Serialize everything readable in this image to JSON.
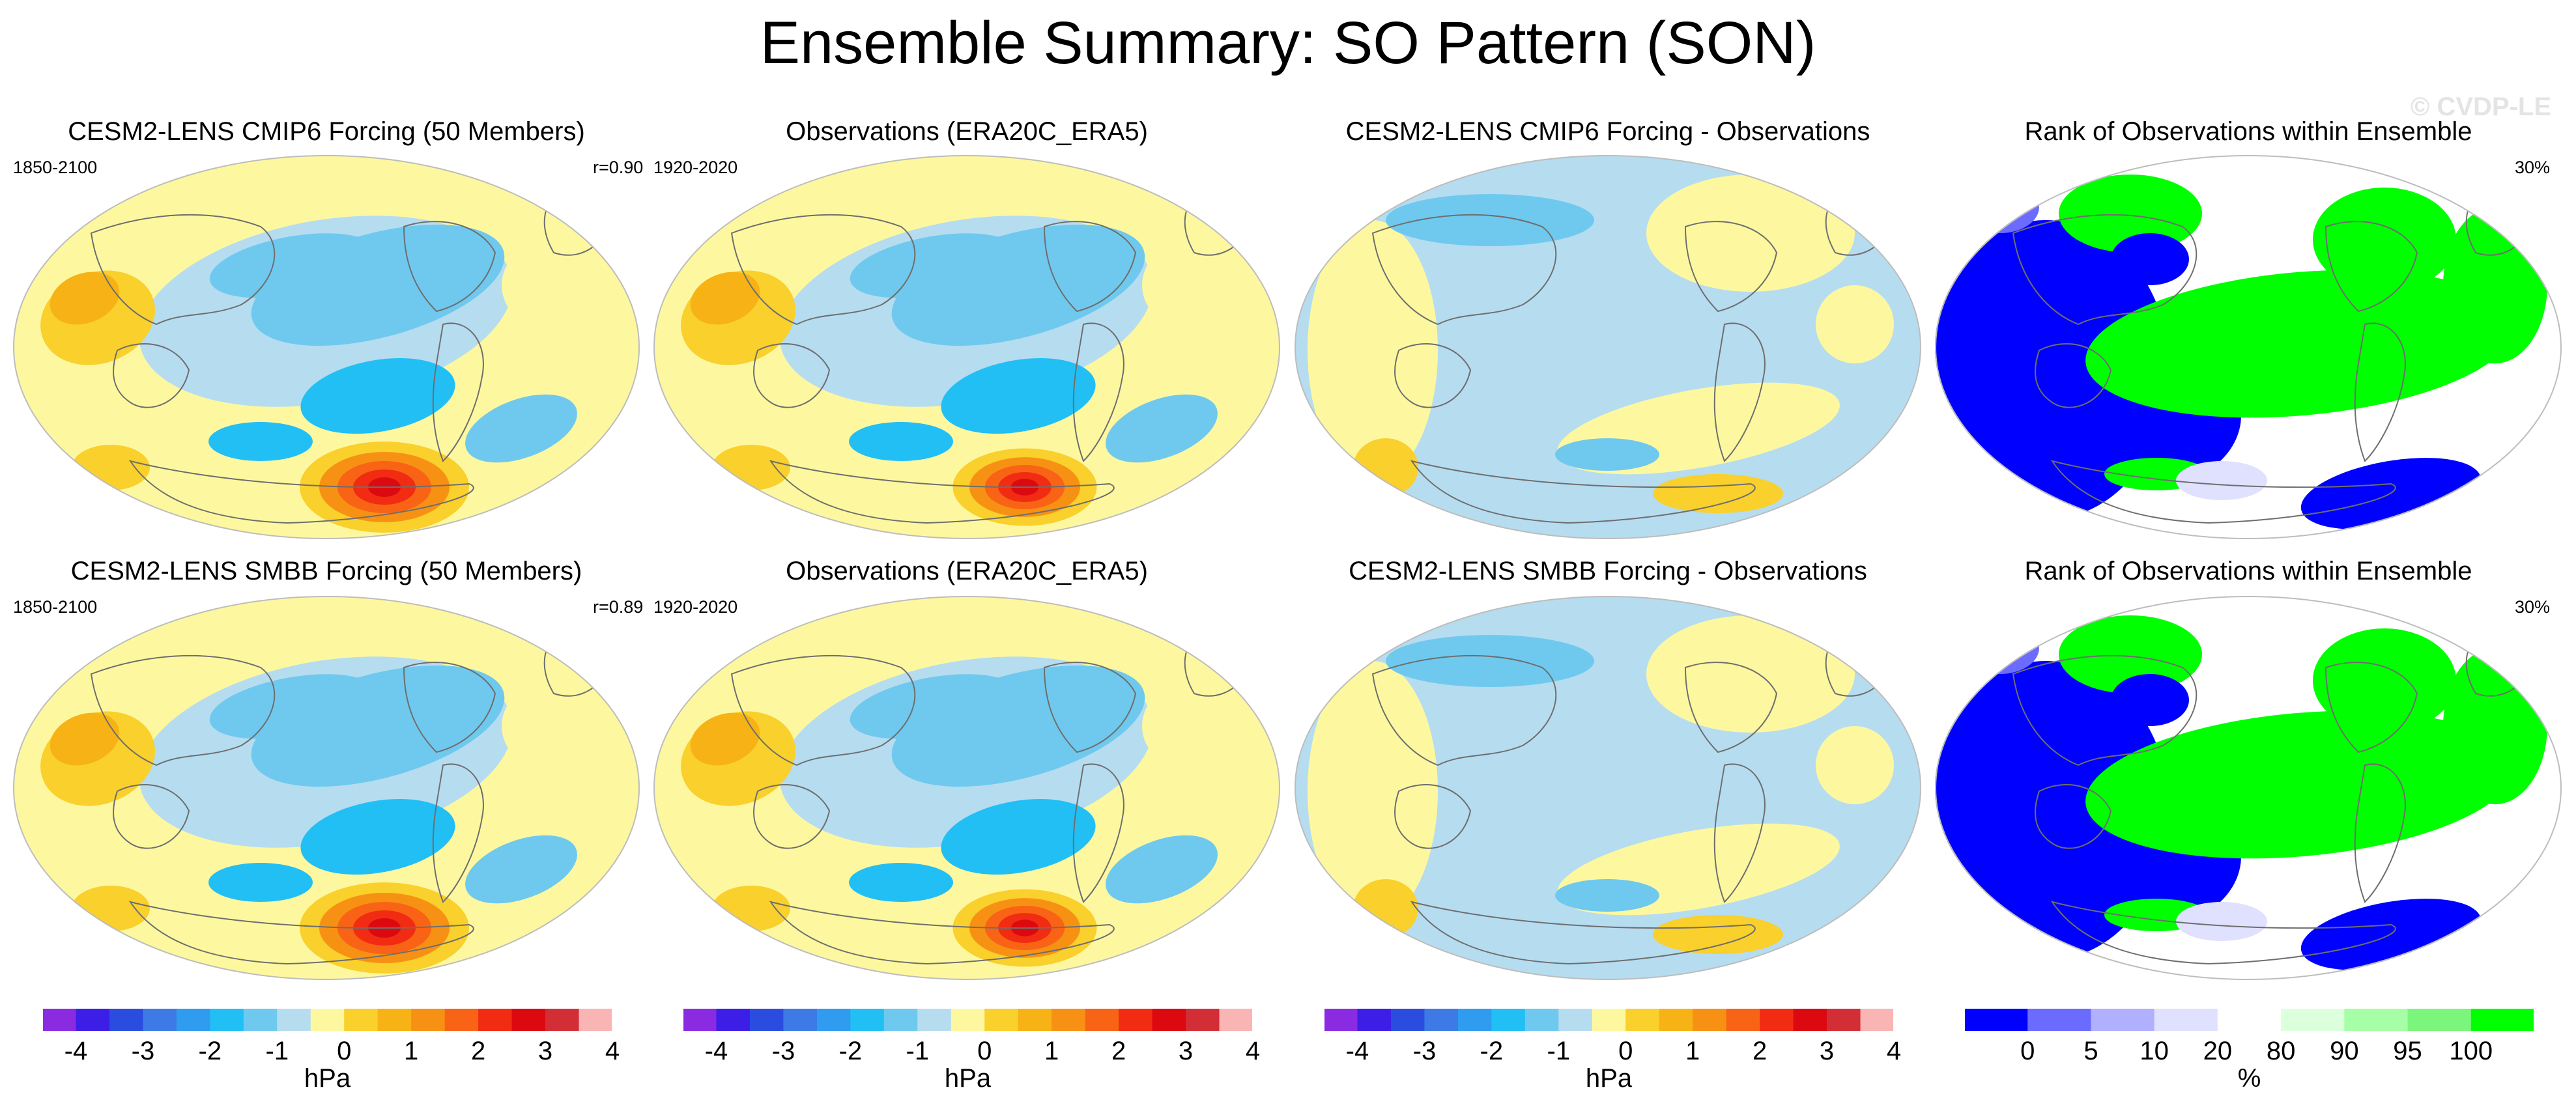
{
  "title": "Ensemble Summary: SO Pattern (SON)",
  "watermark": "© CVDP-LE",
  "rows": [
    {
      "panels": [
        {
          "title": "CESM2-LENS CMIP6 Forcing (50 Members)",
          "left_label": "1850-2100",
          "right_label": "r=0.90",
          "kind": "pattern"
        },
        {
          "title": "Observations (ERA20C_ERA5)",
          "left_label": "1920-2020",
          "right_label": "",
          "kind": "pattern"
        },
        {
          "title": "CESM2-LENS CMIP6 Forcing - Observations",
          "left_label": "",
          "right_label": "",
          "kind": "diff"
        },
        {
          "title": "Rank of Observations within Ensemble",
          "left_label": "",
          "right_label": "30%",
          "kind": "rank"
        }
      ]
    },
    {
      "panels": [
        {
          "title": "CESM2-LENS SMBB Forcing (50 Members)",
          "left_label": "1850-2100",
          "right_label": "r=0.89",
          "kind": "pattern"
        },
        {
          "title": "Observations (ERA20C_ERA5)",
          "left_label": "1920-2020",
          "right_label": "",
          "kind": "pattern"
        },
        {
          "title": "CESM2-LENS SMBB Forcing - Observations",
          "left_label": "",
          "right_label": "",
          "kind": "diff"
        },
        {
          "title": "Rank of Observations within Ensemble",
          "left_label": "",
          "right_label": "30%",
          "kind": "rank"
        }
      ]
    }
  ],
  "colorbars": [
    {
      "unit": "hPa",
      "labels": [
        "-4",
        "-3",
        "-2",
        "-1",
        "0",
        "1",
        "2",
        "3",
        "4"
      ]
    },
    {
      "unit": "hPa",
      "labels": [
        "-4",
        "-3",
        "-2",
        "-1",
        "0",
        "1",
        "2",
        "3",
        "4"
      ]
    },
    {
      "unit": "hPa",
      "labels": [
        "-4",
        "-3",
        "-2",
        "-1",
        "0",
        "1",
        "2",
        "3",
        "4"
      ]
    },
    {
      "unit": "%",
      "labels": [
        "0",
        "5",
        "10",
        "20",
        "80",
        "90",
        "95",
        "100"
      ]
    }
  ],
  "colors": {
    "hpa_scale": [
      "#8a2be2",
      "#3c1ee6",
      "#2a4de0",
      "#3d7ae6",
      "#2f9cf0",
      "#22bff5",
      "#6fc9ee",
      "#b6dcf0",
      "#fdf8a0",
      "#f9d02c",
      "#f7b216",
      "#f79114",
      "#f96315",
      "#f12c12",
      "#dc0a10",
      "#d32e36",
      "#f9b4b4"
    ],
    "rank_scale": [
      "#0000ff",
      "#6b6bff",
      "#b0b0ff",
      "#e0e0ff",
      "#ffffff",
      "#dcffdc",
      "#a6ffa6",
      "#7bf57b",
      "#00ff00"
    ],
    "land_outline": "#6e6e6e"
  }
}
